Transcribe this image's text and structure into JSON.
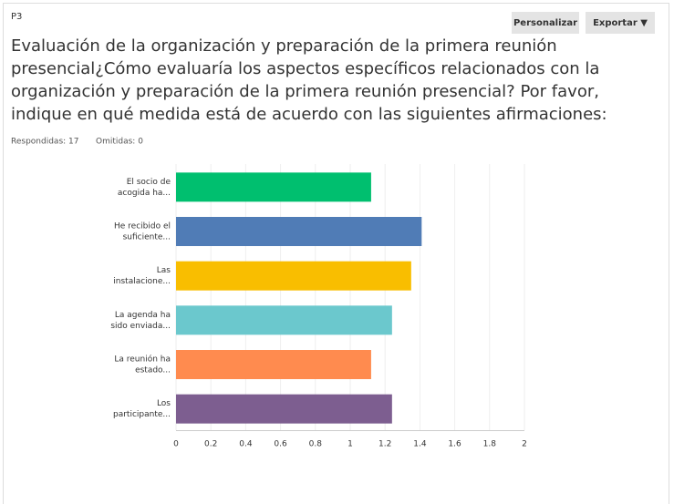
{
  "question": "P3",
  "buttons": [
    "Personalizar",
    "Exportar ▼"
  ],
  "heading": [
    "Evaluación de la organización y preparación de la primera reunión",
    "presencial¿Cómo evaluaría los aspectos específicos relacionados con la",
    "organización y preparación de la primera reunión presencial? Por favor,",
    "indique en qué medida está de acuerdo con las siguientes afirmaciones:"
  ],
  "answered": "Respondidas: 17",
  "skipped": "Omitidas: 0",
  "chart_data": {
    "type": "hbar",
    "categories": [
      [
        "El socio de",
        "acogida ha..."
      ],
      [
        "He recibido el",
        "suficiente..."
      ],
      [
        "Las",
        "instalacione..."
      ],
      [
        "La agenda ha",
        "sido enviada..."
      ],
      [
        "La reunión ha",
        "estado..."
      ],
      [
        "Los",
        "participante..."
      ]
    ],
    "values": [
      1.12,
      1.41,
      1.35,
      1.24,
      1.12,
      1.24
    ],
    "colors": [
      "#00bf6f",
      "#507cb6",
      "#f9be00",
      "#6bc8cd",
      "#ff8b4f",
      "#7d5e90"
    ],
    "xlim": [
      0,
      2
    ],
    "xticks": [
      0,
      0.2,
      0.4,
      0.6,
      0.8,
      1,
      1.2,
      1.4,
      1.6,
      1.8,
      2
    ],
    "grid": true
  }
}
